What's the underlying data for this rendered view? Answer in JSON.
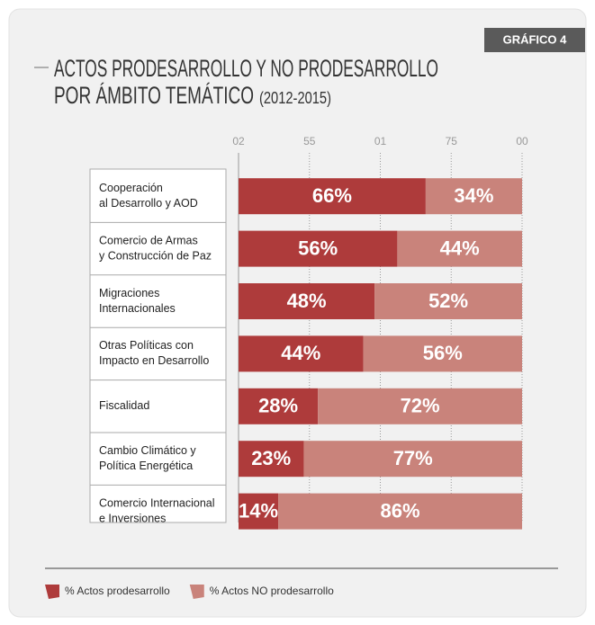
{
  "chart_data": {
    "type": "stacked-bar-horizontal",
    "badge": "GRÁFICO 4",
    "title": [
      "ACTOS PRODESARROLLO Y NO PRODESARROLLO",
      "POR ÁMBITO TEMÁTICO"
    ],
    "subtitle": "(2012-2015)",
    "categories": [
      [
        "Cooperación",
        "al Desarrollo y AOD"
      ],
      [
        "Comercio de Armas",
        "y Construcción de Paz"
      ],
      [
        "Migraciones",
        "Internacionales"
      ],
      [
        "Otras Políticas con",
        "Impacto en Desarrollo"
      ],
      [
        "Fiscalidad"
      ],
      [
        "Cambio Climático y",
        "Política Energética"
      ],
      [
        "Comercio Internacional",
        "e Inversiones"
      ]
    ],
    "series": [
      {
        "name": "% Actos prodesarrollo",
        "color": "#ae3b3b",
        "values": [
          66,
          56,
          48,
          44,
          28,
          23,
          14
        ],
        "value_labels": [
          "66%",
          "56%",
          "48%",
          "44%",
          "28%",
          "23%",
          "14%"
        ]
      },
      {
        "name": "% Actos NO prodesarrollo",
        "color": "#c9837b",
        "values": [
          34,
          44,
          52,
          56,
          72,
          77,
          86
        ],
        "value_labels": [
          "34%",
          "44%",
          "52%",
          "56%",
          "72%",
          "77%",
          "86%"
        ]
      }
    ],
    "xlim": [
      0,
      100
    ],
    "xticks": [
      {
        "value": 0,
        "label": "02"
      },
      {
        "value": 25,
        "label": "55"
      },
      {
        "value": 50,
        "label": "01"
      },
      75,
      {
        "value": 100,
        "label": "00"
      }
    ],
    "grid": true
  }
}
